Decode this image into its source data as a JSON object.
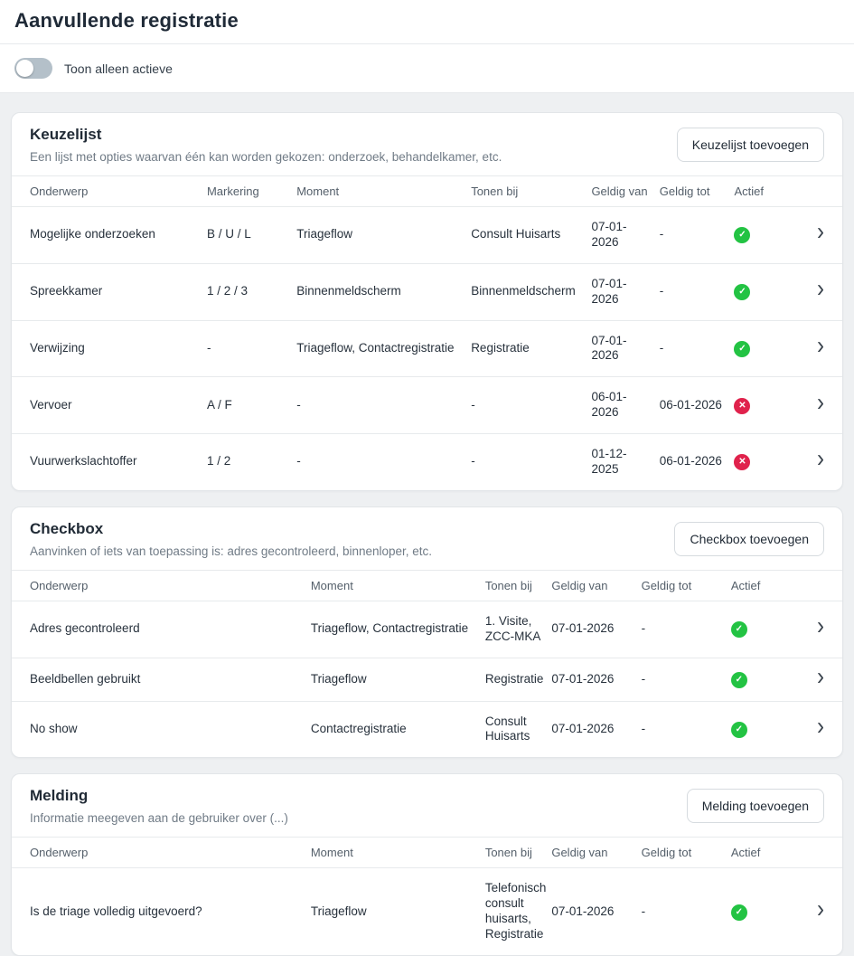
{
  "page": {
    "title": "Aanvullende registratie",
    "toggle_label": "Toon alleen actieve",
    "toggle_state": "off"
  },
  "colors": {
    "active_badge_green": "#23c343",
    "inactive_badge_red": "#e0224c",
    "page_background": "#eef0f2"
  },
  "icons": {
    "active": "check-circle-icon",
    "inactive": "cross-circle-icon",
    "row_arrow": "chevron-right-icon"
  },
  "sections": [
    {
      "title": "Keuzelijst",
      "description": "Een lijst met opties waarvan één kan worden gekozen: onderzoek, behandelkamer, etc.",
      "add_button": "Keuzelijst toevoegen",
      "columns": [
        {
          "key": "onderwerp",
          "label": "Onderwerp"
        },
        {
          "key": "markering",
          "label": "Markering"
        },
        {
          "key": "moment",
          "label": "Moment"
        },
        {
          "key": "tonen_bij",
          "label": "Tonen bij"
        },
        {
          "key": "geldig_van",
          "label": "Geldig van"
        },
        {
          "key": "geldig_tot",
          "label": "Geldig tot"
        },
        {
          "key": "actief",
          "label": "Actief"
        }
      ],
      "rows": [
        {
          "onderwerp": "Mogelijke onderzoeken",
          "markering": "B / U / L",
          "moment": "Triageflow",
          "tonen_bij": "Consult Huisarts",
          "geldig_van": "07-01-2026",
          "geldig_tot": "-",
          "actief": true
        },
        {
          "onderwerp": "Spreekkamer",
          "markering": "1 / 2 / 3",
          "moment": "Binnenmeldscherm",
          "tonen_bij": "Binnenmeldscherm",
          "geldig_van": "07-01-2026",
          "geldig_tot": "-",
          "actief": true
        },
        {
          "onderwerp": "Verwijzing",
          "markering": "-",
          "moment": "Triageflow, Contactregistratie",
          "tonen_bij": "Registratie",
          "geldig_van": "07-01-2026",
          "geldig_tot": "-",
          "actief": true
        },
        {
          "onderwerp": "Vervoer",
          "markering": "A / F",
          "moment": "-",
          "tonen_bij": "-",
          "geldig_van": "06-01-2026",
          "geldig_tot": "06-01-2026",
          "actief": false
        },
        {
          "onderwerp": "Vuurwerkslachtoffer",
          "markering": "1 / 2",
          "moment": "-",
          "tonen_bij": "-",
          "geldig_van": "01-12-2025",
          "geldig_tot": "06-01-2026",
          "actief": false
        }
      ]
    },
    {
      "title": "Checkbox",
      "description": "Aanvinken of iets van toepassing is: adres gecontroleerd, binnenloper, etc.",
      "add_button": "Checkbox toevoegen",
      "columns": [
        {
          "key": "onderwerp",
          "label": "Onderwerp"
        },
        {
          "key": "moment",
          "label": "Moment"
        },
        {
          "key": "tonen_bij",
          "label": "Tonen bij"
        },
        {
          "key": "geldig_van",
          "label": "Geldig van"
        },
        {
          "key": "geldig_tot",
          "label": "Geldig tot"
        },
        {
          "key": "actief",
          "label": "Actief"
        }
      ],
      "rows": [
        {
          "onderwerp": "Adres gecontroleerd",
          "moment": "Triageflow, Contactregistratie",
          "tonen_bij": "1. Visite, ZCC-MKA",
          "geldig_van": "07-01-2026",
          "geldig_tot": "-",
          "actief": true
        },
        {
          "onderwerp": "Beeldbellen gebruikt",
          "moment": "Triageflow",
          "tonen_bij": "Registratie",
          "geldig_van": "07-01-2026",
          "geldig_tot": "-",
          "actief": true
        },
        {
          "onderwerp": "No show",
          "moment": "Contactregistratie",
          "tonen_bij": "Consult Huisarts",
          "geldig_van": "07-01-2026",
          "geldig_tot": "-",
          "actief": true
        }
      ]
    },
    {
      "title": "Melding",
      "description": "Informatie meegeven aan de gebruiker over (...)",
      "add_button": "Melding toevoegen",
      "columns": [
        {
          "key": "onderwerp",
          "label": "Onderwerp"
        },
        {
          "key": "moment",
          "label": "Moment"
        },
        {
          "key": "tonen_bij",
          "label": "Tonen bij"
        },
        {
          "key": "geldig_van",
          "label": "Geldig van"
        },
        {
          "key": "geldig_tot",
          "label": "Geldig tot"
        },
        {
          "key": "actief",
          "label": "Actief"
        }
      ],
      "rows": [
        {
          "onderwerp": "Is de triage volledig uitgevoerd?",
          "moment": "Triageflow",
          "tonen_bij": "Telefonisch consult huisarts, Registratie",
          "geldig_van": "07-01-2026",
          "geldig_tot": "-",
          "actief": true
        }
      ]
    }
  ]
}
